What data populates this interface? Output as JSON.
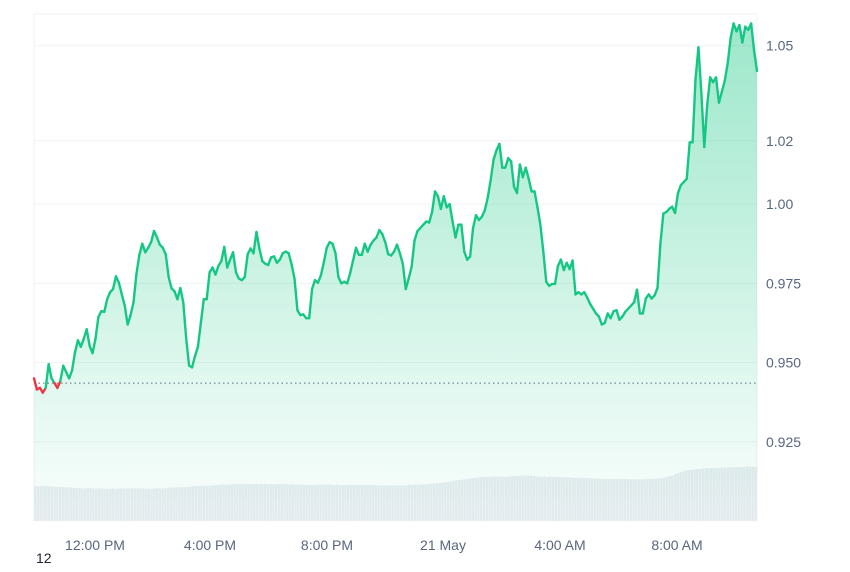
{
  "chart_data": {
    "type": "area",
    "x_tick_labels": [
      "12:00 PM",
      "4:00 PM",
      "8:00 PM",
      "21 May",
      "4:00 AM",
      "8:00 AM"
    ],
    "y_ticks": [
      1.05,
      1.02,
      1.0,
      0.975,
      0.95,
      0.925
    ],
    "y_tick_labels": [
      "1.05",
      "1.02",
      "1.00",
      "0.975",
      "0.950",
      "0.925"
    ],
    "ylim": [
      0.9,
      1.06
    ],
    "grid": true,
    "reference_line": 0.9435,
    "colors": {
      "up": "#16c784",
      "down": "#ea3943",
      "reference": "#5f6b7a",
      "volume": "#e9ecf1"
    },
    "series": [
      {
        "values": [
          0.945,
          0.9415,
          0.942,
          0.9405,
          0.942,
          0.9495,
          0.945,
          0.9435,
          0.942,
          0.9442,
          0.949,
          0.947,
          0.945,
          0.9475,
          0.9532,
          0.957,
          0.955,
          0.9575,
          0.9605,
          0.9553,
          0.953,
          0.9575,
          0.9644,
          0.9662,
          0.966,
          0.97,
          0.9722,
          0.9732,
          0.9772,
          0.9752,
          0.9715,
          0.968,
          0.962,
          0.965,
          0.969,
          0.978,
          0.984,
          0.9875,
          0.9848,
          0.9862,
          0.988,
          0.9915,
          0.9895,
          0.9872,
          0.9862,
          0.9842,
          0.977,
          0.9734,
          0.9725,
          0.97,
          0.9735,
          0.969,
          0.9575,
          0.949,
          0.9485,
          0.952,
          0.955,
          0.9625,
          0.97,
          0.97,
          0.9785,
          0.98,
          0.9778,
          0.9805,
          0.982,
          0.9865,
          0.98,
          0.9825,
          0.9848,
          0.9785,
          0.9765,
          0.976,
          0.977,
          0.9842,
          0.986,
          0.9845,
          0.9912,
          0.986,
          0.982,
          0.9812,
          0.9808,
          0.9832,
          0.9835,
          0.9815,
          0.9825,
          0.9845,
          0.985,
          0.9845,
          0.981,
          0.9765,
          0.9665,
          0.965,
          0.9652,
          0.964,
          0.964,
          0.9732,
          0.976,
          0.9752,
          0.9775,
          0.9815,
          0.9862,
          0.988,
          0.9875,
          0.9845,
          0.977,
          0.975,
          0.9755,
          0.975,
          0.9782,
          0.9822,
          0.9862,
          0.984,
          0.984,
          0.9875,
          0.985,
          0.9872,
          0.9885,
          0.9895,
          0.9918,
          0.9905,
          0.988,
          0.9842,
          0.9838,
          0.985,
          0.9872,
          0.9845,
          0.9812,
          0.9732,
          0.9765,
          0.9802,
          0.9885,
          0.9915,
          0.9925,
          0.9935,
          0.9945,
          0.9942,
          0.9975,
          1.004,
          1.0025,
          0.9985,
          1.0025,
          0.999,
          1.0,
          0.9945,
          0.9895,
          0.9935,
          0.9935,
          0.985,
          0.9825,
          0.9835,
          0.9925,
          0.9965,
          0.995,
          0.996,
          0.998,
          1.002,
          1.0075,
          1.014,
          1.017,
          1.019,
          1.0115,
          1.0115,
          1.0145,
          1.0135,
          1.0055,
          1.0035,
          1.0125,
          1.0085,
          1.0115,
          1.008,
          1.004,
          1.004,
          0.999,
          0.9935,
          0.985,
          0.9755,
          0.9742,
          0.9748,
          0.9748,
          0.9805,
          0.9825,
          0.9792,
          0.9815,
          0.9795,
          0.9822,
          0.9715,
          0.9722,
          0.9715,
          0.9722,
          0.9705,
          0.9685,
          0.967,
          0.9655,
          0.9645,
          0.962,
          0.9625,
          0.9655,
          0.964,
          0.9662,
          0.9665,
          0.9635,
          0.9645,
          0.966,
          0.967,
          0.968,
          0.969,
          0.973,
          0.9655,
          0.9655,
          0.9702,
          0.9715,
          0.9702,
          0.9712,
          0.9735,
          0.9875,
          0.997,
          0.9975,
          0.9985,
          0.9992,
          0.9972,
          1.0035,
          1.006,
          1.007,
          1.008,
          1.0195,
          1.0195,
          1.0395,
          1.0495,
          1.035,
          1.018,
          1.0315,
          1.04,
          1.0385,
          1.04,
          1.032,
          1.0355,
          1.039,
          1.0445,
          1.0525,
          1.057,
          1.0545,
          1.0565,
          1.051,
          1.056,
          1.055,
          1.057,
          1.0485,
          1.042
        ]
      }
    ],
    "volume": [
      0.92,
      0.91,
      0.92,
      0.92,
      0.92,
      0.91,
      0.91,
      0.9,
      0.9,
      0.9,
      0.89,
      0.88,
      0.89,
      0.88,
      0.87,
      0.86,
      0.87,
      0.86,
      0.86,
      0.87,
      0.87,
      0.86,
      0.86,
      0.86,
      0.86,
      0.85,
      0.85,
      0.85,
      0.86,
      0.85,
      0.86,
      0.86,
      0.86,
      0.86,
      0.86,
      0.86,
      0.86,
      0.86,
      0.86,
      0.86,
      0.85,
      0.85,
      0.85,
      0.86,
      0.87,
      0.86,
      0.86,
      0.87,
      0.88,
      0.88,
      0.88,
      0.89,
      0.89,
      0.89,
      0.89,
      0.9,
      0.91,
      0.92,
      0.93,
      0.92,
      0.93,
      0.93,
      0.93,
      0.94,
      0.94,
      0.95,
      0.95,
      0.96,
      0.96,
      0.96,
      0.96,
      0.97,
      0.98,
      0.98,
      0.98,
      0.98,
      0.98,
      0.98,
      0.98,
      0.98,
      0.98,
      0.97,
      0.98,
      0.98,
      0.97,
      0.97,
      0.97,
      0.97,
      0.97,
      0.98,
      0.98,
      0.97,
      0.97,
      0.97,
      0.96,
      0.96,
      0.96,
      0.95,
      0.95,
      0.96,
      0.95,
      0.95,
      0.96,
      0.96,
      0.96,
      0.96,
      0.96,
      0.96,
      0.95,
      0.96,
      0.95,
      0.95,
      0.95,
      0.95,
      0.95,
      0.95,
      0.95,
      0.95,
      0.95,
      0.95,
      0.94,
      0.95,
      0.95,
      0.94,
      0.94,
      0.95,
      0.94,
      0.93,
      0.94,
      0.94,
      0.94,
      0.94,
      0.94,
      0.94,
      0.95,
      0.96,
      0.96,
      0.96,
      0.96,
      0.96,
      0.97,
      0.97,
      0.98,
      0.98,
      0.99,
      0.99,
      1.0,
      1.01,
      1.02,
      1.03,
      1.04,
      1.06,
      1.07,
      1.08,
      1.09,
      1.1,
      1.11,
      1.12,
      1.13,
      1.14,
      1.15,
      1.16,
      1.16,
      1.16,
      1.17,
      1.17,
      1.17,
      1.17,
      1.17,
      1.17,
      1.16,
      1.17,
      1.18,
      1.19,
      1.19,
      1.19,
      1.2,
      1.2,
      1.2,
      1.19,
      1.19,
      1.18,
      1.17,
      1.17,
      1.17,
      1.16,
      1.17,
      1.16,
      1.16,
      1.16,
      1.16,
      1.15,
      1.15,
      1.15,
      1.14,
      1.14,
      1.14,
      1.14,
      1.14,
      1.13,
      1.13,
      1.12,
      1.12,
      1.12,
      1.11,
      1.11,
      1.11,
      1.11,
      1.11,
      1.11,
      1.11,
      1.11,
      1.11,
      1.11,
      1.11,
      1.1,
      1.1,
      1.1,
      1.1,
      1.1,
      1.1,
      1.11,
      1.11,
      1.11,
      1.12,
      1.12,
      1.13,
      1.14,
      1.16,
      1.18,
      1.2,
      1.23,
      1.26,
      1.29,
      1.31,
      1.33,
      1.34,
      1.35,
      1.36,
      1.37,
      1.37,
      1.38,
      1.39,
      1.39,
      1.39,
      1.4,
      1.4,
      1.4,
      1.41,
      1.41,
      1.41,
      1.42,
      1.42,
      1.42,
      1.42,
      1.42,
      1.43,
      1.43,
      1.43,
      1.43,
      1.43
    ]
  },
  "corner_label": "12"
}
